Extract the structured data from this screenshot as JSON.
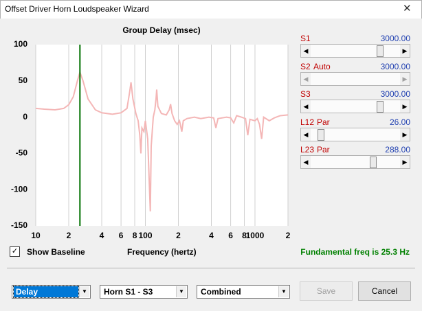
{
  "window": {
    "title": "Offset Driver Horn Loudspeaker Wizard"
  },
  "chart_data": {
    "type": "line",
    "title": "Group Delay (msec)",
    "x_label": "Frequency (hertz)",
    "log_x": true,
    "xlim": [
      10,
      2000
    ],
    "xticks": [
      10,
      {
        "value": 20,
        "label": "2"
      },
      {
        "value": 40,
        "label": "4"
      },
      {
        "value": 60,
        "label": "6"
      },
      {
        "value": 80,
        "label": "8"
      },
      100,
      {
        "value": 200,
        "label": "2"
      },
      {
        "value": 400,
        "label": "4"
      },
      {
        "value": 600,
        "label": "6"
      },
      {
        "value": 800,
        "label": "8"
      },
      1000,
      {
        "value": 2000,
        "label": "2"
      }
    ],
    "ylim": [
      -150,
      100
    ],
    "yticks": [
      100,
      50,
      0,
      -50,
      -100,
      -150
    ],
    "grid": "x",
    "color": "#f4b6b6",
    "vline": 25.3,
    "vline_color": "#007000",
    "x": [
      10,
      12,
      15,
      18,
      20,
      22,
      24,
      25.3,
      27,
      30,
      35,
      40,
      50,
      60,
      68,
      72,
      74,
      77,
      82,
      86,
      89,
      91,
      93,
      97,
      100,
      105,
      108,
      111,
      113,
      118,
      122,
      125,
      127,
      130,
      140,
      155,
      165,
      170,
      175,
      185,
      195,
      205,
      215,
      222,
      240,
      280,
      320,
      380,
      420,
      440,
      460,
      550,
      600,
      640,
      680,
      750,
      820,
      860,
      900,
      1000,
      1050,
      1100,
      1150,
      1200,
      1350,
      1500,
      1700,
      2000
    ],
    "values": [
      12,
      11,
      10,
      12,
      17,
      28,
      50,
      62,
      50,
      25,
      10,
      6,
      4,
      6,
      12,
      35,
      48,
      25,
      5,
      -5,
      -25,
      -50,
      -15,
      -20,
      -5,
      -30,
      -80,
      -130,
      -40,
      0,
      10,
      25,
      38,
      15,
      5,
      3,
      10,
      18,
      5,
      -5,
      -10,
      -5,
      -20,
      -5,
      -2,
      0,
      -2,
      0,
      -1,
      -15,
      -2,
      0,
      -1,
      -8,
      2,
      0,
      -2,
      -25,
      -3,
      -5,
      -2,
      -10,
      -30,
      0,
      -5,
      -1,
      2,
      3
    ]
  },
  "sliders": [
    {
      "label": "S1",
      "value": "3000.00"
    },
    {
      "label": "S2",
      "mode": "Auto",
      "value": "3000.00"
    },
    {
      "label": "S3",
      "value": "3000.00"
    },
    {
      "label": "L12",
      "mode": "Par",
      "value": "26.00"
    },
    {
      "label": "L23",
      "mode": "Par",
      "value": "288.00"
    }
  ],
  "checkbox": {
    "label": "Show Baseline",
    "mark": "✓"
  },
  "status": "Fundamental freq is 25.3 Hz",
  "dropdowns": [
    "Delay",
    "Horn S1 - S3",
    "Combined"
  ],
  "buttons": [
    "Save",
    "Cancel"
  ]
}
